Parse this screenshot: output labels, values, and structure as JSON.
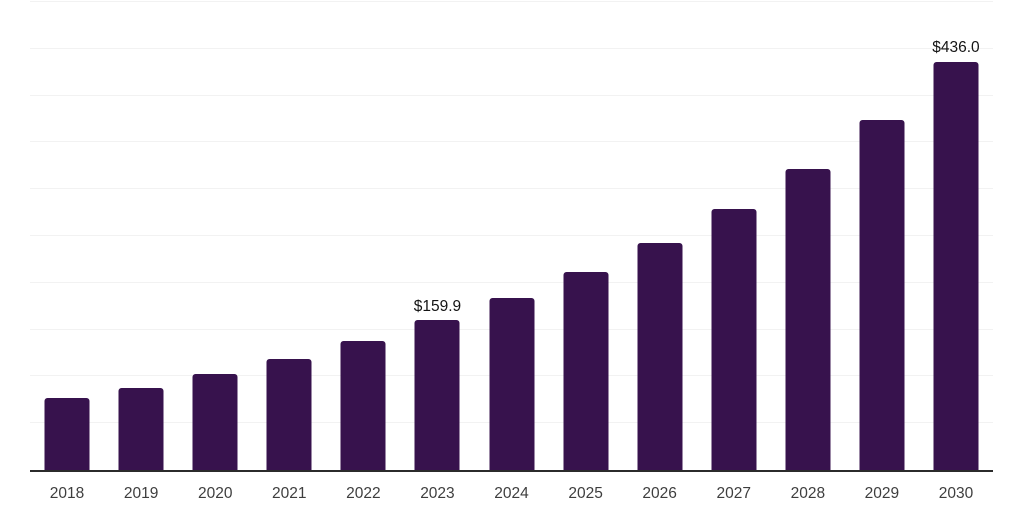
{
  "chart": {
    "background_color": "#ffffff",
    "bar_color": "#37124D",
    "gridline_color": "#f2f2f2",
    "axis_line_color": "#2b2b2b",
    "tick_label_color": "#3e3e3e",
    "value_label_color": "#141414"
  },
  "chart_data": {
    "type": "bar",
    "title": "",
    "xlabel": "",
    "ylabel": "",
    "categories": [
      "2018",
      "2019",
      "2020",
      "2021",
      "2022",
      "2023",
      "2024",
      "2025",
      "2026",
      "2027",
      "2028",
      "2029",
      "2030"
    ],
    "values": [
      76.8,
      87.5,
      103.0,
      118.6,
      137.4,
      159.9,
      183.9,
      211.7,
      242.8,
      279.2,
      322.0,
      374.1,
      436.0
    ],
    "value_labels": [
      "",
      "",
      "",
      "",
      "",
      "$159.9",
      "",
      "",
      "",
      "",
      "",
      "",
      "$436.0"
    ],
    "ylim": [
      0,
      500
    ],
    "gridline_step": 50,
    "grid": "horizontal",
    "legend": "none",
    "y_axis_tick_labels": "none"
  }
}
